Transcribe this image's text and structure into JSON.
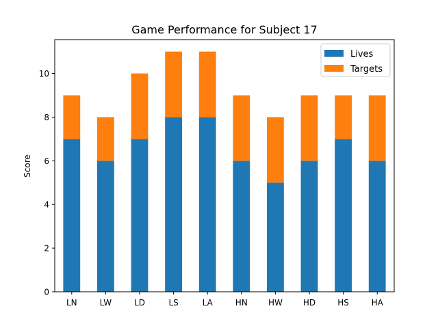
{
  "chart_data": {
    "type": "bar",
    "stacked": true,
    "title": "Game Performance for Subject 17",
    "xlabel": "",
    "ylabel": "Score",
    "categories": [
      "LN",
      "LW",
      "LD",
      "LS",
      "LA",
      "HN",
      "HW",
      "HD",
      "HS",
      "HA"
    ],
    "series": [
      {
        "name": "Lives",
        "color": "#1f77b4",
        "values": [
          7,
          6,
          7,
          8,
          8,
          6,
          5,
          6,
          7,
          6
        ]
      },
      {
        "name": "Targets",
        "color": "#ff7f0e",
        "values": [
          2,
          2,
          3,
          3,
          3,
          3,
          3,
          3,
          2,
          3
        ]
      }
    ],
    "ylim": [
      0,
      11.55
    ],
    "yticks": [
      0,
      2,
      4,
      6,
      8,
      10
    ],
    "grid": false,
    "legend_position": "top-right"
  }
}
